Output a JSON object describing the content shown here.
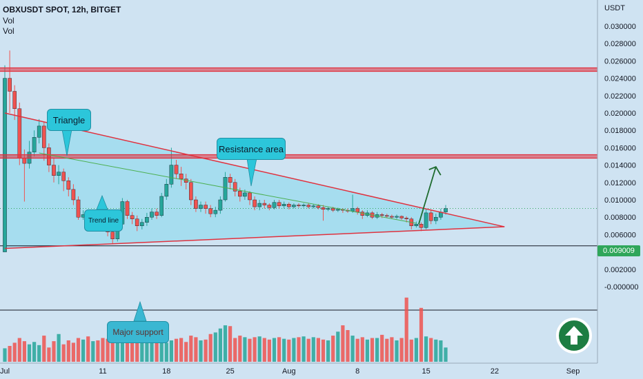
{
  "header": {
    "title": "OBXUSDT SPOT, 12h, BITGET",
    "indicator_1": "Vol",
    "indicator_2": "Vol"
  },
  "annotations": {
    "triangle": "Triangle",
    "resistance": "Resistance area",
    "trend_line": "Trend line",
    "major_support": "Major support"
  },
  "last_price_label": "0.009009",
  "up_button_icon": "up-arrow-icon",
  "colors": {
    "background": "#cfe3f2",
    "bull": "#26a69a",
    "bear": "#ef5350",
    "resistance": "#e0313e",
    "triangle_fill": "#9fdcef",
    "trend": "#4caf50",
    "arrow": "#1e6b2e",
    "badge": "#2fa65a"
  },
  "chart_data": {
    "type": "candlestick",
    "title": "OBXUSDT SPOT, 12h, BITGET",
    "currency": "USDT",
    "interval": "12h",
    "y_ticks": [
      "0.030000",
      "0.028000",
      "0.026000",
      "0.024000",
      "0.022000",
      "0.020000",
      "0.018000",
      "0.016000",
      "0.014000",
      "0.012000",
      "0.010000",
      "0.008000",
      "0.006000",
      "0.004000",
      "0.002000",
      "-0.000000"
    ],
    "ylim": [
      -0.0008,
      0.0318
    ],
    "x_ticks": [
      "Jul",
      "11",
      "18",
      "25",
      "Aug",
      "8",
      "15",
      "22",
      "Sep"
    ],
    "last_price": 0.009009,
    "resistance_levels": [
      0.025,
      0.015
    ],
    "support_level": 0.0047,
    "triangle": {
      "upper": [
        [
          0,
          0.02
        ],
        [
          102,
          0.0069
        ]
      ],
      "lower": [
        [
          0,
          0.0044
        ],
        [
          102,
          0.0069
        ]
      ]
    },
    "trend_line": [
      [
        7,
        0.0154
      ],
      [
        84,
        0.0073
      ]
    ],
    "projection_arrow": [
      [
        84.5,
        0.0072
      ],
      [
        88,
        0.0138
      ]
    ],
    "candles": [
      [
        0.004,
        0.024,
        0.004,
        0.0255
      ],
      [
        0.024,
        0.0225,
        0.02,
        0.0272
      ],
      [
        0.0225,
        0.0205,
        0.0192,
        0.0232
      ],
      [
        0.0205,
        0.0148,
        0.014,
        0.0212
      ],
      [
        0.0148,
        0.0142,
        0.0098,
        0.0158
      ],
      [
        0.0142,
        0.0155,
        0.0136,
        0.0168
      ],
      [
        0.0155,
        0.0172,
        0.015,
        0.018
      ],
      [
        0.0172,
        0.0185,
        0.0165,
        0.0193
      ],
      [
        0.0185,
        0.016,
        0.0145,
        0.019
      ],
      [
        0.016,
        0.014,
        0.0132,
        0.0165
      ],
      [
        0.014,
        0.0128,
        0.012,
        0.0148
      ],
      [
        0.0128,
        0.0132,
        0.0118,
        0.014
      ],
      [
        0.0132,
        0.0122,
        0.011,
        0.0136
      ],
      [
        0.0122,
        0.0112,
        0.0104,
        0.0126
      ],
      [
        0.0112,
        0.01,
        0.0094,
        0.0118
      ],
      [
        0.01,
        0.008,
        0.0077,
        0.0104
      ],
      [
        0.008,
        0.0083,
        0.0077,
        0.0088
      ],
      [
        0.0083,
        0.0081,
        0.0076,
        0.0087
      ],
      [
        0.0081,
        0.0084,
        0.0078,
        0.0088
      ],
      [
        0.0084,
        0.0079,
        0.0074,
        0.0087
      ],
      [
        0.0079,
        0.0072,
        0.0068,
        0.0081
      ],
      [
        0.0072,
        0.0063,
        0.0058,
        0.0075
      ],
      [
        0.0063,
        0.0055,
        0.005,
        0.0066
      ],
      [
        0.0055,
        0.0072,
        0.0052,
        0.0076
      ],
      [
        0.0072,
        0.0098,
        0.007,
        0.0102
      ],
      [
        0.0098,
        0.0082,
        0.0078,
        0.01
      ],
      [
        0.0082,
        0.0078,
        0.0072,
        0.0086
      ],
      [
        0.0078,
        0.007,
        0.0064,
        0.0082
      ],
      [
        0.007,
        0.0074,
        0.0066,
        0.0078
      ],
      [
        0.0074,
        0.008,
        0.007,
        0.0085
      ],
      [
        0.008,
        0.0086,
        0.0077,
        0.009
      ],
      [
        0.0086,
        0.0082,
        0.0078,
        0.009
      ],
      [
        0.0082,
        0.0104,
        0.008,
        0.0108
      ],
      [
        0.0104,
        0.0118,
        0.01,
        0.0124
      ],
      [
        0.0118,
        0.014,
        0.0114,
        0.016
      ],
      [
        0.014,
        0.013,
        0.0124,
        0.0146
      ],
      [
        0.013,
        0.0124,
        0.0116,
        0.0138
      ],
      [
        0.0124,
        0.012,
        0.0112,
        0.013
      ],
      [
        0.012,
        0.01,
        0.0094,
        0.0124
      ],
      [
        0.01,
        0.009,
        0.0086,
        0.0104
      ],
      [
        0.009,
        0.0094,
        0.0086,
        0.0098
      ],
      [
        0.0094,
        0.009,
        0.0084,
        0.0098
      ],
      [
        0.009,
        0.0084,
        0.008,
        0.0094
      ],
      [
        0.0084,
        0.0088,
        0.008,
        0.0092
      ],
      [
        0.0088,
        0.01,
        0.0084,
        0.0104
      ],
      [
        0.01,
        0.0126,
        0.0098,
        0.0132
      ],
      [
        0.0126,
        0.012,
        0.0112,
        0.013
      ],
      [
        0.012,
        0.011,
        0.0104,
        0.0124
      ],
      [
        0.011,
        0.0104,
        0.0098,
        0.0114
      ],
      [
        0.0104,
        0.0108,
        0.01,
        0.0112
      ],
      [
        0.0108,
        0.01,
        0.0094,
        0.011
      ],
      [
        0.01,
        0.0092,
        0.0088,
        0.0104
      ],
      [
        0.0092,
        0.0096,
        0.0088,
        0.01
      ],
      [
        0.0096,
        0.0094,
        0.009,
        0.01
      ],
      [
        0.0094,
        0.0091,
        0.0088,
        0.0096
      ],
      [
        0.0091,
        0.0097,
        0.0089,
        0.01
      ],
      [
        0.0097,
        0.0093,
        0.009,
        0.01
      ],
      [
        0.0093,
        0.0095,
        0.009,
        0.0098
      ],
      [
        0.0095,
        0.0092,
        0.0089,
        0.0097
      ],
      [
        0.0092,
        0.0094,
        0.009,
        0.0096
      ],
      [
        0.0094,
        0.0093,
        0.0091,
        0.0096
      ],
      [
        0.0093,
        0.0094,
        0.0091,
        0.0096
      ],
      [
        0.0094,
        0.0092,
        0.009,
        0.0096
      ],
      [
        0.0092,
        0.0093,
        0.009,
        0.0095
      ],
      [
        0.0093,
        0.0091,
        0.0089,
        0.0095
      ],
      [
        0.0091,
        0.0089,
        0.0076,
        0.0094
      ],
      [
        0.0089,
        0.009,
        0.0087,
        0.0092
      ],
      [
        0.009,
        0.0088,
        0.0086,
        0.0092
      ],
      [
        0.0088,
        0.0089,
        0.0086,
        0.0091
      ],
      [
        0.0089,
        0.0088,
        0.0085,
        0.009
      ],
      [
        0.0088,
        0.0087,
        0.0085,
        0.009
      ],
      [
        0.0087,
        0.009,
        0.0085,
        0.0106
      ],
      [
        0.009,
        0.0086,
        0.0083,
        0.0092
      ],
      [
        0.0086,
        0.0082,
        0.0078,
        0.0088
      ],
      [
        0.0082,
        0.0085,
        0.008,
        0.0088
      ],
      [
        0.0085,
        0.008,
        0.0078,
        0.0087
      ],
      [
        0.008,
        0.0083,
        0.0078,
        0.0086
      ],
      [
        0.0083,
        0.0082,
        0.0079,
        0.0085
      ],
      [
        0.0082,
        0.0081,
        0.0079,
        0.0084
      ],
      [
        0.0081,
        0.008,
        0.0078,
        0.0083
      ],
      [
        0.008,
        0.0081,
        0.0078,
        0.0083
      ],
      [
        0.0081,
        0.0079,
        0.0077,
        0.0082
      ],
      [
        0.0079,
        0.0078,
        0.0074,
        0.0081
      ],
      [
        0.0078,
        0.007,
        0.0066,
        0.008
      ],
      [
        0.007,
        0.0072,
        0.0068,
        0.0075
      ],
      [
        0.0072,
        0.0068,
        0.0064,
        0.0074
      ],
      [
        0.0068,
        0.0085,
        0.0066,
        0.009
      ],
      [
        0.0085,
        0.0076,
        0.0072,
        0.0088
      ],
      [
        0.0076,
        0.008,
        0.0072,
        0.0084
      ],
      [
        0.008,
        0.0086,
        0.0077,
        0.009
      ],
      [
        0.0086,
        0.009,
        0.0083,
        0.0094
      ]
    ],
    "volume_scale": "relative",
    "volumes": [
      0.17,
      0.2,
      0.24,
      0.3,
      0.26,
      0.22,
      0.25,
      0.21,
      0.33,
      0.18,
      0.26,
      0.35,
      0.22,
      0.27,
      0.24,
      0.3,
      0.28,
      0.32,
      0.26,
      0.27,
      0.3,
      0.29,
      0.33,
      0.36,
      0.34,
      0.32,
      0.3,
      0.31,
      0.29,
      0.28,
      0.32,
      0.3,
      0.31,
      0.24,
      0.27,
      0.29,
      0.3,
      0.25,
      0.33,
      0.31,
      0.27,
      0.28,
      0.35,
      0.37,
      0.42,
      0.46,
      0.45,
      0.3,
      0.33,
      0.31,
      0.29,
      0.31,
      0.32,
      0.3,
      0.28,
      0.3,
      0.31,
      0.29,
      0.28,
      0.3,
      0.31,
      0.32,
      0.29,
      0.31,
      0.3,
      0.28,
      0.27,
      0.33,
      0.38,
      0.46,
      0.4,
      0.33,
      0.29,
      0.31,
      0.28,
      0.3,
      0.3,
      0.34,
      0.29,
      0.31,
      0.27,
      0.3,
      0.81,
      0.28,
      0.3,
      0.68,
      0.32,
      0.3,
      0.28,
      0.27,
      0.18
    ]
  }
}
